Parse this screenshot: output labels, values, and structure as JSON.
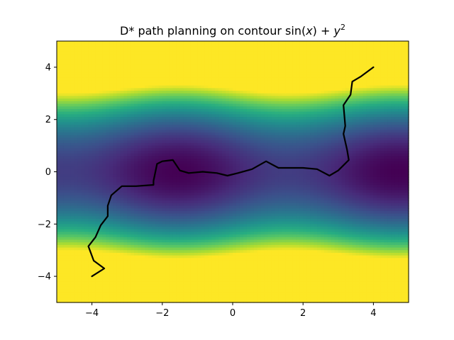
{
  "chart_data": {
    "type": "heatmap",
    "title": "D* path planning on contour sin(x) + y²",
    "title_parts": {
      "prefix": "D* path planning on contour ",
      "fn": "sin(",
      "x": "x",
      "close": ")",
      "plus": " + ",
      "y": "y",
      "exp": "2"
    },
    "xlabel": "",
    "ylabel": "",
    "xlim": [
      -5,
      5
    ],
    "ylim": [
      -5,
      5
    ],
    "xticks": [
      -4,
      -2,
      0,
      2,
      4
    ],
    "yticks": [
      -4,
      -2,
      0,
      2,
      4
    ],
    "xtick_labels": [
      "−4",
      "−2",
      "0",
      "2",
      "4"
    ],
    "ytick_labels": [
      "−4",
      "−2",
      "0",
      "2",
      "4"
    ],
    "grid": false,
    "colormap": "viridis",
    "function": "sin(x) + y^2",
    "color_limits": [
      -1,
      10
    ],
    "path": {
      "color": "#000000",
      "points": [
        [
          -4.0,
          -4.0
        ],
        [
          -3.65,
          -3.7
        ],
        [
          -3.95,
          -3.4
        ],
        [
          -4.1,
          -2.85
        ],
        [
          -3.9,
          -2.5
        ],
        [
          -3.75,
          -2.05
        ],
        [
          -3.55,
          -1.7
        ],
        [
          -3.55,
          -1.3
        ],
        [
          -3.45,
          -0.9
        ],
        [
          -3.15,
          -0.55
        ],
        [
          -2.75,
          -0.55
        ],
        [
          -2.25,
          -0.5
        ],
        [
          -2.25,
          -0.35
        ],
        [
          -2.15,
          0.3
        ],
        [
          -2.0,
          0.4
        ],
        [
          -1.7,
          0.45
        ],
        [
          -1.5,
          0.05
        ],
        [
          -1.25,
          -0.05
        ],
        [
          -0.85,
          0.0
        ],
        [
          -0.45,
          -0.05
        ],
        [
          -0.15,
          -0.15
        ],
        [
          0.15,
          -0.05
        ],
        [
          0.55,
          0.1
        ],
        [
          0.95,
          0.4
        ],
        [
          1.3,
          0.15
        ],
        [
          2.0,
          0.15
        ],
        [
          2.4,
          0.1
        ],
        [
          2.75,
          -0.15
        ],
        [
          3.0,
          0.05
        ],
        [
          3.3,
          0.45
        ],
        [
          3.25,
          0.85
        ],
        [
          3.15,
          1.45
        ],
        [
          3.2,
          1.75
        ],
        [
          3.15,
          2.55
        ],
        [
          3.35,
          2.95
        ],
        [
          3.4,
          3.45
        ],
        [
          3.65,
          3.65
        ],
        [
          4.0,
          4.0
        ]
      ]
    }
  }
}
